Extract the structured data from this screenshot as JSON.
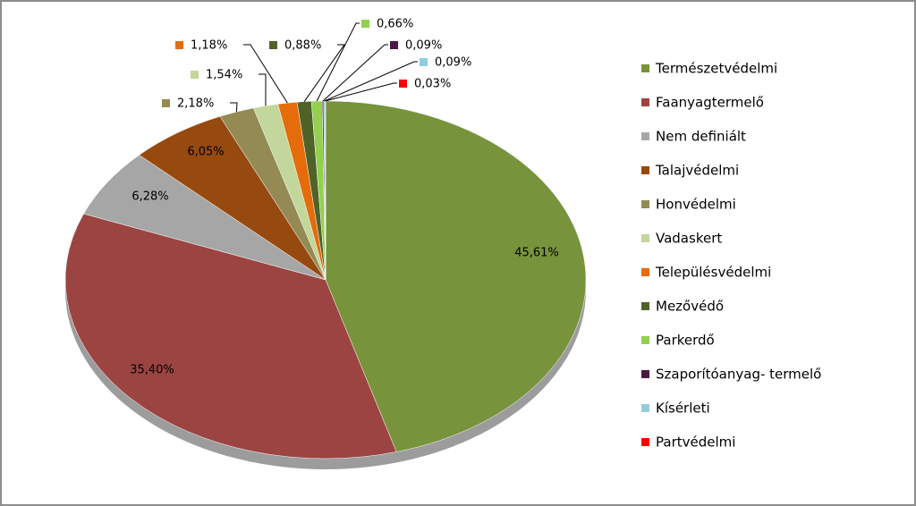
{
  "chart_data": {
    "type": "pie",
    "categories": [
      "Természetvédelmi",
      "Faanyagtermelő",
      "Nem definiált",
      "Talajvédelmi",
      "Honvédelmi",
      "Vadaskert",
      "Településvédelmi",
      "Mezővédő",
      "Parkerdő",
      "Szaporítóanyag- termelő",
      "Kísérleti",
      "Partvédelmi"
    ],
    "values": [
      45.61,
      35.4,
      6.28,
      6.05,
      2.18,
      1.54,
      1.18,
      0.88,
      0.66,
      0.09,
      0.09,
      0.03
    ],
    "value_labels": [
      "45,61%",
      "35,40%",
      "6,28%",
      "6,05%",
      "2,18%",
      "1,54%",
      "1,18%",
      "0,88%",
      "0,66%",
      "0,09%",
      "0,09%",
      "0,03%"
    ],
    "colors": [
      "#77933c",
      "#9b4442",
      "#a6a6a6",
      "#974a0f",
      "#948a54",
      "#c3d69b",
      "#e46c0a",
      "#4f6228",
      "#92d050",
      "#4a1942",
      "#93cddd",
      "#ff0000"
    ],
    "legend": "right"
  }
}
